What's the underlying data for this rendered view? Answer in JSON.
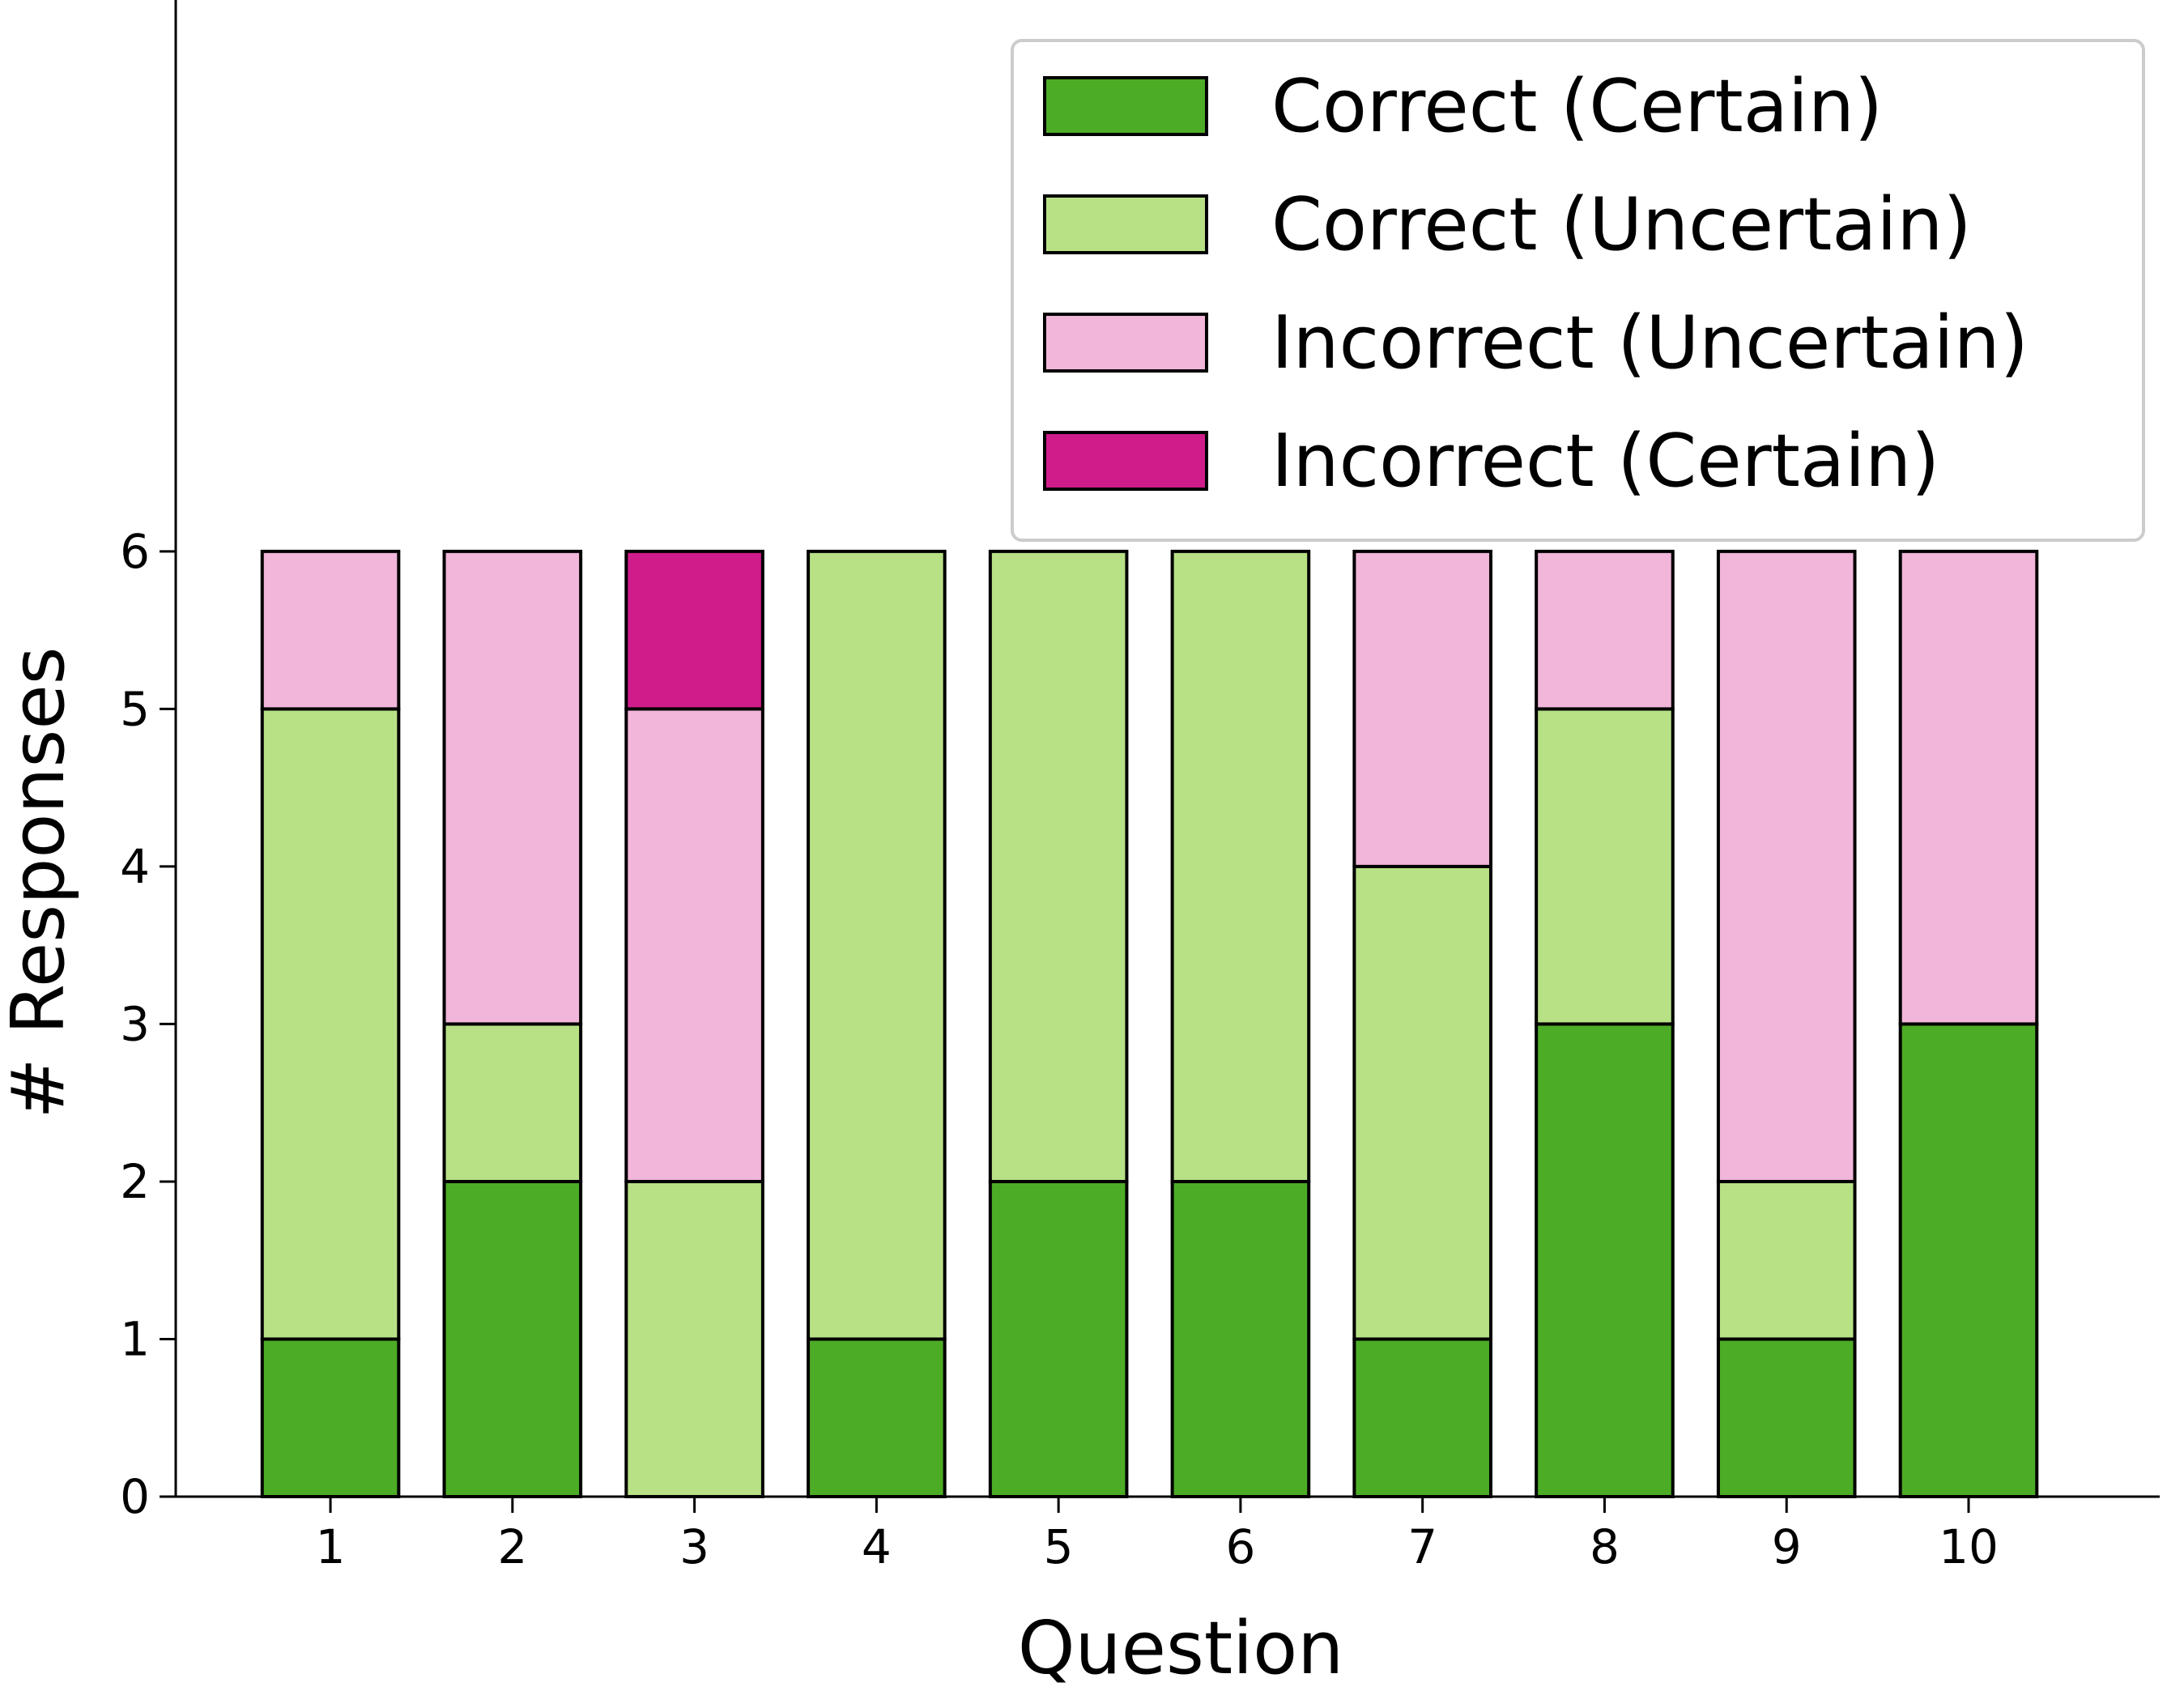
{
  "chart_data": {
    "type": "bar",
    "stacked": true,
    "categories": [
      "1",
      "2",
      "3",
      "4",
      "5",
      "6",
      "7",
      "8",
      "9",
      "10"
    ],
    "series": [
      {
        "name": "Correct (Certain)",
        "color": "#4dac26",
        "values": [
          1,
          2,
          0,
          1,
          2,
          2,
          1,
          3,
          1,
          3
        ]
      },
      {
        "name": "Correct (Uncertain)",
        "color": "#b8e186",
        "values": [
          4,
          1,
          2,
          5,
          4,
          4,
          3,
          2,
          1,
          0
        ]
      },
      {
        "name": "Incorrect (Uncertain)",
        "color": "#f1b6da",
        "values": [
          1,
          3,
          3,
          0,
          0,
          0,
          2,
          1,
          4,
          3
        ]
      },
      {
        "name": "Incorrect (Certain)",
        "color": "#d01c8b",
        "values": [
          0,
          0,
          1,
          0,
          0,
          0,
          0,
          0,
          0,
          0
        ]
      }
    ],
    "xlabel": "Question",
    "ylabel": "# Responses",
    "ylim": [
      0,
      9.5
    ],
    "yticks": [
      "0",
      "1",
      "2",
      "3",
      "4",
      "5",
      "6"
    ],
    "legend_position": "top-right",
    "grid": false
  }
}
